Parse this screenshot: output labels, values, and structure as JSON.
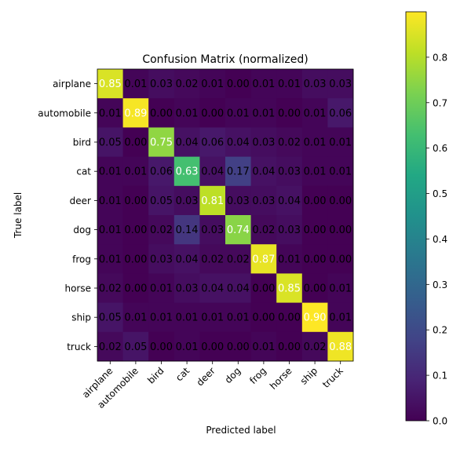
{
  "chart_data": {
    "type": "heatmap",
    "title": "Confusion Matrix (normalized)",
    "xlabel": "Predicted label",
    "ylabel": "True label",
    "x_categories": [
      "airplane",
      "automobile",
      "bird",
      "cat",
      "deer",
      "dog",
      "frog",
      "horse",
      "ship",
      "truck"
    ],
    "y_categories": [
      "airplane",
      "automobile",
      "bird",
      "cat",
      "deer",
      "dog",
      "frog",
      "horse",
      "ship",
      "truck"
    ],
    "values": [
      [
        0.85,
        0.01,
        0.03,
        0.02,
        0.01,
        0.0,
        0.01,
        0.01,
        0.03,
        0.03
      ],
      [
        0.01,
        0.89,
        0.0,
        0.01,
        0.0,
        0.01,
        0.01,
        0.0,
        0.01,
        0.06
      ],
      [
        0.05,
        0.0,
        0.75,
        0.04,
        0.06,
        0.04,
        0.03,
        0.02,
        0.01,
        0.01
      ],
      [
        0.01,
        0.01,
        0.06,
        0.63,
        0.04,
        0.17,
        0.04,
        0.03,
        0.01,
        0.01
      ],
      [
        0.01,
        0.0,
        0.05,
        0.03,
        0.81,
        0.03,
        0.03,
        0.04,
        0.0,
        0.0
      ],
      [
        0.01,
        0.0,
        0.02,
        0.14,
        0.03,
        0.74,
        0.02,
        0.03,
        0.0,
        0.0
      ],
      [
        0.01,
        0.0,
        0.03,
        0.04,
        0.02,
        0.02,
        0.87,
        0.01,
        0.0,
        0.0
      ],
      [
        0.02,
        0.0,
        0.01,
        0.03,
        0.04,
        0.04,
        0.0,
        0.85,
        0.0,
        0.01
      ],
      [
        0.05,
        0.01,
        0.01,
        0.01,
        0.01,
        0.01,
        0.0,
        0.0,
        0.9,
        0.01
      ],
      [
        0.02,
        0.05,
        0.0,
        0.01,
        0.0,
        0.0,
        0.01,
        0.0,
        0.02,
        0.88
      ]
    ],
    "value_format": "0.00",
    "colormap": "viridis",
    "color_range": [
      0,
      0.9
    ],
    "colorbar": {
      "ticks": [
        0.0,
        0.1,
        0.2,
        0.3,
        0.4,
        0.5,
        0.6,
        0.7,
        0.8
      ],
      "tick_labels": [
        "0.0",
        "0.1",
        "0.2",
        "0.3",
        "0.4",
        "0.5",
        "0.6",
        "0.7",
        "0.8"
      ]
    },
    "grid": false,
    "text_color_light": "#ffffff",
    "text_color_dark": "#000000",
    "text_threshold": 0.45
  }
}
